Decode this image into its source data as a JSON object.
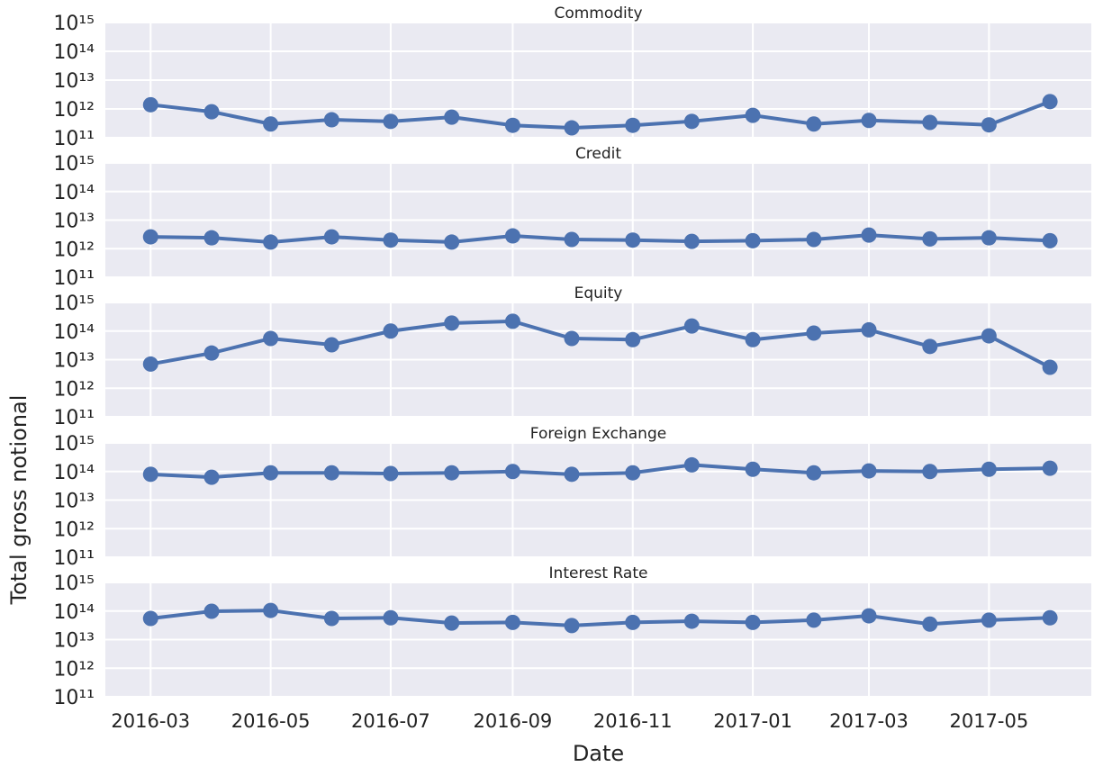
{
  "chart_data": [
    {
      "type": "line",
      "title": "Commodity",
      "ylog": true,
      "grid": true,
      "color": "#4c72b0",
      "show_xtick_labels": false,
      "x": [
        "2016-03",
        "2016-04",
        "2016-05",
        "2016-06",
        "2016-07",
        "2016-08",
        "2016-09",
        "2016-10",
        "2016-11",
        "2016-12",
        "2017-01",
        "2017-02",
        "2017-03",
        "2017-04",
        "2017-05",
        "2017-06"
      ],
      "values": [
        1400000000000.0,
        800000000000.0,
        300000000000.0,
        420000000000.0,
        370000000000.0,
        520000000000.0,
        270000000000.0,
        220000000000.0,
        270000000000.0,
        370000000000.0,
        600000000000.0,
        300000000000.0,
        400000000000.0,
        340000000000.0,
        280000000000.0,
        1800000000000.0
      ],
      "xlim": [
        "2016-02-07",
        "2017-06-22"
      ],
      "xticks": [
        "2016-03",
        "2016-05",
        "2016-07",
        "2016-09",
        "2016-11",
        "2017-01",
        "2017-03",
        "2017-05"
      ],
      "ylim": [
        100000000000.0,
        1000000000000000.0
      ],
      "yticks": [
        {
          "value": 100000000000.0,
          "label": "10¹¹"
        },
        {
          "value": 1000000000000.0,
          "label": "10¹²"
        },
        {
          "value": 10000000000000.0,
          "label": "10¹³"
        },
        {
          "value": 100000000000000.0,
          "label": "10¹⁴"
        },
        {
          "value": 1000000000000000.0,
          "label": "10¹⁵"
        }
      ]
    },
    {
      "type": "line",
      "title": "Credit",
      "ylog": true,
      "grid": true,
      "color": "#4c72b0",
      "show_xtick_labels": false,
      "x": [
        "2016-03",
        "2016-04",
        "2016-05",
        "2016-06",
        "2016-07",
        "2016-08",
        "2016-09",
        "2016-10",
        "2016-11",
        "2016-12",
        "2017-01",
        "2017-02",
        "2017-03",
        "2017-04",
        "2017-05",
        "2017-06"
      ],
      "values": [
        2600000000000.0,
        2400000000000.0,
        1700000000000.0,
        2600000000000.0,
        2000000000000.0,
        1700000000000.0,
        2800000000000.0,
        2100000000000.0,
        2000000000000.0,
        1800000000000.0,
        1900000000000.0,
        2100000000000.0,
        3000000000000.0,
        2200000000000.0,
        2400000000000.0,
        1900000000000.0
      ],
      "ylabel": "Total gross notional",
      "xlim": [
        "2016-02-07",
        "2017-06-22"
      ],
      "xticks": [
        "2016-03",
        "2016-05",
        "2016-07",
        "2016-09",
        "2016-11",
        "2017-01",
        "2017-03",
        "2017-05"
      ],
      "ylim": [
        100000000000.0,
        1000000000000000.0
      ],
      "yticks": [
        {
          "value": 100000000000.0,
          "label": "10¹¹"
        },
        {
          "value": 1000000000000.0,
          "label": "10¹²"
        },
        {
          "value": 10000000000000.0,
          "label": "10¹³"
        },
        {
          "value": 100000000000000.0,
          "label": "10¹⁴"
        },
        {
          "value": 1000000000000000.0,
          "label": "10¹⁵"
        }
      ]
    },
    {
      "type": "line",
      "title": "Equity",
      "ylog": true,
      "grid": true,
      "color": "#4c72b0",
      "show_xtick_labels": false,
      "x": [
        "2016-03",
        "2016-04",
        "2016-05",
        "2016-06",
        "2016-07",
        "2016-08",
        "2016-09",
        "2016-10",
        "2016-11",
        "2016-12",
        "2017-01",
        "2017-02",
        "2017-03",
        "2017-04",
        "2017-05",
        "2017-06"
      ],
      "values": [
        7000000000000.0,
        17000000000000.0,
        55000000000000.0,
        33000000000000.0,
        100000000000000.0,
        190000000000000.0,
        220000000000000.0,
        55000000000000.0,
        50000000000000.0,
        150000000000000.0,
        50000000000000.0,
        85000000000000.0,
        110000000000000.0,
        29000000000000.0,
        68000000000000.0,
        5400000000000.0
      ],
      "xlim": [
        "2016-02-07",
        "2017-06-22"
      ],
      "xticks": [
        "2016-03",
        "2016-05",
        "2016-07",
        "2016-09",
        "2016-11",
        "2017-01",
        "2017-03",
        "2017-05"
      ],
      "ylim": [
        100000000000.0,
        1000000000000000.0
      ],
      "yticks": [
        {
          "value": 100000000000.0,
          "label": "10¹¹"
        },
        {
          "value": 1000000000000.0,
          "label": "10¹²"
        },
        {
          "value": 10000000000000.0,
          "label": "10¹³"
        },
        {
          "value": 100000000000000.0,
          "label": "10¹⁴"
        },
        {
          "value": 1000000000000000.0,
          "label": "10¹⁵"
        }
      ]
    },
    {
      "type": "line",
      "title": "Foreign Exchange",
      "ylog": true,
      "grid": true,
      "color": "#4c72b0",
      "show_xtick_labels": false,
      "x": [
        "2016-03",
        "2016-04",
        "2016-05",
        "2016-06",
        "2016-07",
        "2016-08",
        "2016-09",
        "2016-10",
        "2016-11",
        "2016-12",
        "2017-01",
        "2017-02",
        "2017-03",
        "2017-04",
        "2017-05",
        "2017-06"
      ],
      "values": [
        80000000000000.0,
        63000000000000.0,
        90000000000000.0,
        90000000000000.0,
        85000000000000.0,
        90000000000000.0,
        100000000000000.0,
        80000000000000.0,
        90000000000000.0,
        170000000000000.0,
        120000000000000.0,
        90000000000000.0,
        105000000000000.0,
        100000000000000.0,
        120000000000000.0,
        130000000000000.0
      ],
      "xlim": [
        "2016-02-07",
        "2017-06-22"
      ],
      "xticks": [
        "2016-03",
        "2016-05",
        "2016-07",
        "2016-09",
        "2016-11",
        "2017-01",
        "2017-03",
        "2017-05"
      ],
      "ylim": [
        100000000000.0,
        1000000000000000.0
      ],
      "yticks": [
        {
          "value": 100000000000.0,
          "label": "10¹¹"
        },
        {
          "value": 1000000000000.0,
          "label": "10¹²"
        },
        {
          "value": 10000000000000.0,
          "label": "10¹³"
        },
        {
          "value": 100000000000000.0,
          "label": "10¹⁴"
        },
        {
          "value": 1000000000000000.0,
          "label": "10¹⁵"
        }
      ]
    },
    {
      "type": "line",
      "title": "Interest Rate",
      "ylog": true,
      "grid": true,
      "color": "#4c72b0",
      "show_xtick_labels": true,
      "xlabel": "Date",
      "x": [
        "2016-03",
        "2016-04",
        "2016-05",
        "2016-06",
        "2016-07",
        "2016-08",
        "2016-09",
        "2016-10",
        "2016-11",
        "2016-12",
        "2017-01",
        "2017-02",
        "2017-03",
        "2017-04",
        "2017-05",
        "2017-06"
      ],
      "values": [
        55000000000000.0,
        98000000000000.0,
        105000000000000.0,
        55000000000000.0,
        58000000000000.0,
        38000000000000.0,
        40000000000000.0,
        31000000000000.0,
        40000000000000.0,
        44000000000000.0,
        40000000000000.0,
        48000000000000.0,
        68000000000000.0,
        35000000000000.0,
        48000000000000.0,
        58000000000000.0
      ],
      "xlim": [
        "2016-02-07",
        "2017-06-22"
      ],
      "xticks": [
        "2016-03",
        "2016-05",
        "2016-07",
        "2016-09",
        "2016-11",
        "2017-01",
        "2017-03",
        "2017-05"
      ],
      "ylim": [
        100000000000.0,
        1000000000000000.0
      ],
      "yticks": [
        {
          "value": 100000000000.0,
          "label": "10¹¹"
        },
        {
          "value": 1000000000000.0,
          "label": "10¹²"
        },
        {
          "value": 10000000000000.0,
          "label": "10¹³"
        },
        {
          "value": 100000000000000.0,
          "label": "10¹⁴"
        },
        {
          "value": 1000000000000000.0,
          "label": "10¹⁵"
        }
      ]
    }
  ]
}
